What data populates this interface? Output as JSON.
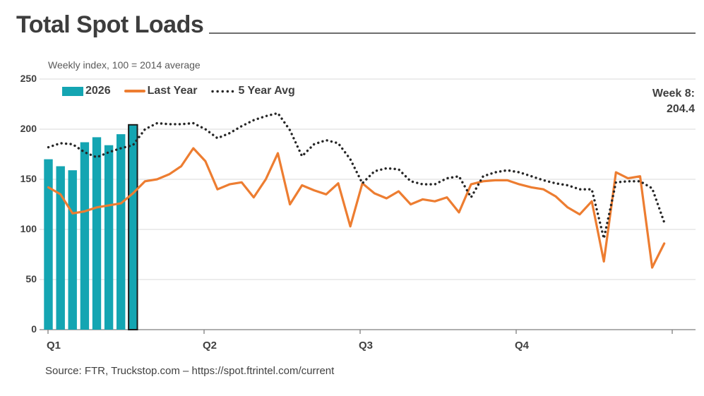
{
  "page": {
    "title": "Total Spot Loads",
    "source": "Source: FTR, Truckstop.com – https://spot.ftrintel.com/current"
  },
  "chart_data": {
    "type": "combo",
    "title": "Total Spot Loads",
    "subtitle": "Weekly index, 100 = 2014 average",
    "grid": true,
    "legend_position": "top-left",
    "x_axis": {
      "tick_labels": [
        "Q1",
        "Q2",
        "Q3",
        "Q4"
      ],
      "weeks_per_quarter": 13,
      "total_weeks": 52
    },
    "y_axis": {
      "min": 0,
      "max": 250,
      "step": 50,
      "tick_labels": [
        "250",
        "200",
        "150",
        "100",
        "50",
        "0"
      ]
    },
    "annotation": {
      "label": "Week 8:",
      "value": "204.4"
    },
    "series": [
      {
        "name": "2026",
        "type": "bar",
        "color": "#14A5B2",
        "highlight_last": true,
        "highlight_stroke": "#1a1a1a",
        "values": [
          170,
          163,
          159,
          187,
          192,
          184,
          195,
          204.4
        ]
      },
      {
        "name": "Last Year",
        "type": "line",
        "color": "#ED7D31",
        "values": [
          142,
          135,
          116,
          118,
          122,
          124,
          126,
          136,
          148,
          150,
          155,
          163,
          181,
          168,
          140,
          145,
          147,
          132,
          150,
          176,
          125,
          144,
          139,
          135,
          146,
          103,
          146,
          136,
          131,
          138,
          125,
          130,
          128,
          132,
          117,
          145,
          148,
          149,
          149,
          145,
          142,
          140,
          133,
          122,
          115,
          128,
          68,
          157,
          151,
          153,
          62,
          86
        ]
      },
      {
        "name": "5 Year Avg",
        "type": "dotted-line",
        "color": "#262626",
        "values": [
          182,
          186,
          185,
          177,
          172,
          177,
          181,
          184,
          200,
          206,
          205,
          205,
          206,
          200,
          191,
          196,
          203,
          209,
          213,
          216,
          199,
          173,
          185,
          189,
          186,
          170,
          146,
          158,
          161,
          160,
          148,
          145,
          145,
          151,
          153,
          132,
          153,
          157,
          159,
          157,
          153,
          149,
          146,
          144,
          140,
          140,
          91,
          147,
          148,
          148,
          141,
          107
        ]
      }
    ]
  }
}
